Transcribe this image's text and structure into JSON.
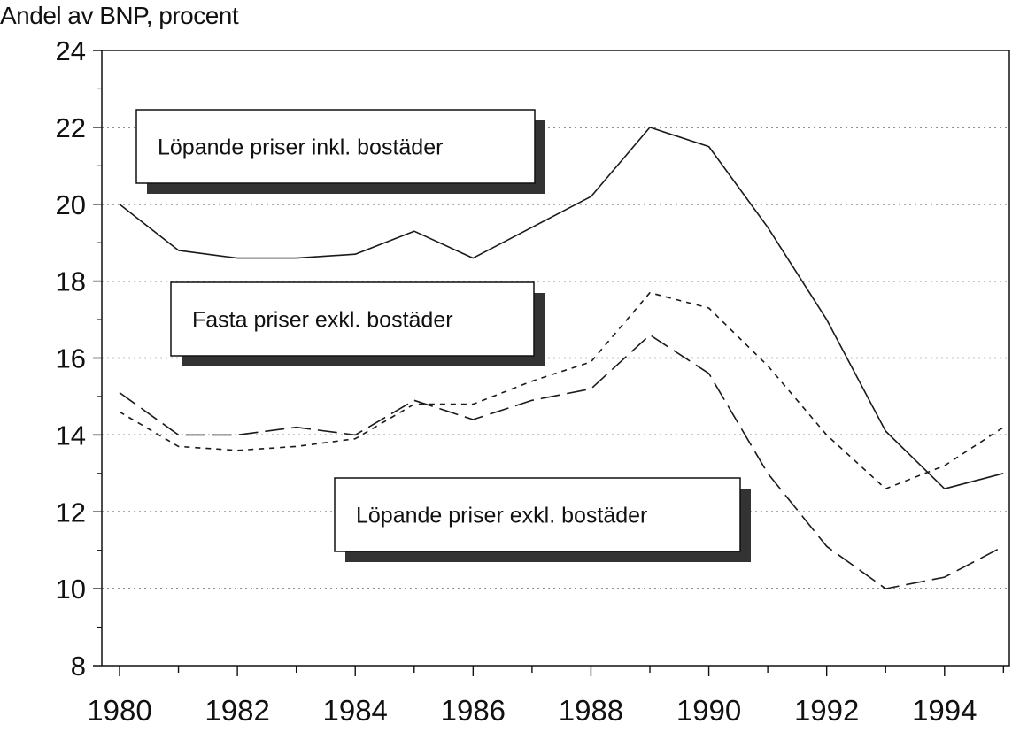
{
  "chart_data": {
    "type": "line",
    "ylabel": "Andel av BNP, procent",
    "xlabel": "",
    "ylim": [
      8,
      24
    ],
    "xlim": [
      1980,
      1995
    ],
    "yticks": [
      "8",
      "10",
      "12",
      "14",
      "16",
      "18",
      "20",
      "22",
      "24"
    ],
    "xticks": [
      "1980",
      "1982",
      "1984",
      "1986",
      "1988",
      "1990",
      "1992",
      "1994"
    ],
    "grid": "horizontal dotted",
    "x": [
      1980,
      1981,
      1982,
      1983,
      1984,
      1985,
      1986,
      1987,
      1988,
      1989,
      1990,
      1991,
      1992,
      1993,
      1994,
      1995
    ],
    "series": [
      {
        "name": "Löpande priser inkl. bostäder",
        "style": "solid",
        "values": [
          20.0,
          18.8,
          18.6,
          18.6,
          18.7,
          19.3,
          18.6,
          19.4,
          20.2,
          22.0,
          21.5,
          19.4,
          17.0,
          14.1,
          12.6,
          13.0
        ]
      },
      {
        "name": "Fasta priser exkl. bostäder",
        "style": "short-dash",
        "values": [
          14.6,
          13.7,
          13.6,
          13.7,
          13.9,
          14.8,
          14.8,
          15.4,
          15.9,
          17.7,
          17.3,
          15.8,
          14.0,
          12.6,
          13.2,
          14.2
        ]
      },
      {
        "name": "Löpande priser exkl. bostäder",
        "style": "long-dash",
        "values": [
          15.1,
          14.0,
          14.0,
          14.2,
          14.0,
          14.9,
          14.4,
          14.9,
          15.2,
          16.6,
          15.6,
          13.0,
          11.1,
          10.0,
          10.3,
          11.1
        ]
      }
    ]
  }
}
